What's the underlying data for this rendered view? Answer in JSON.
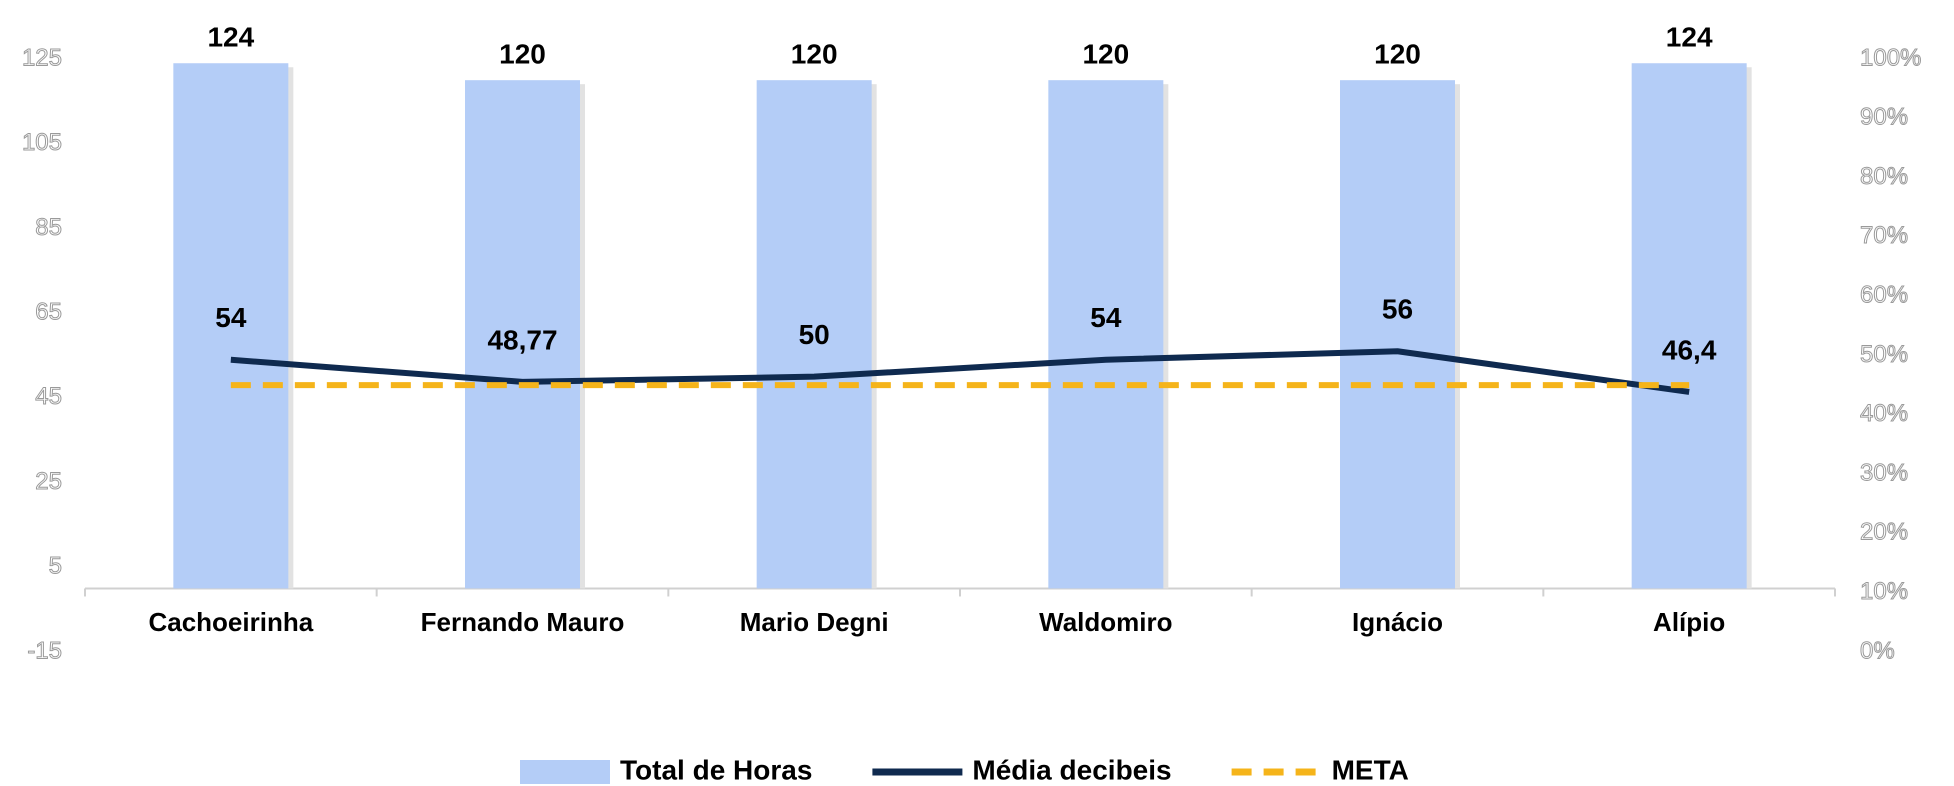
{
  "chart_data": {
    "type": "bar",
    "categories": [
      "Cachoeirinha",
      "Fernando Mauro",
      "Mario Degni",
      "Waldomiro",
      "Ignácio",
      "Alípio"
    ],
    "series": [
      {
        "name": "Total de Horas",
        "type": "bar",
        "color": "#b4cdf7",
        "values": [
          124,
          120,
          120,
          120,
          120,
          124
        ]
      },
      {
        "name": "Média decibeis",
        "type": "line",
        "color": "#0f2a4f",
        "values": [
          54,
          48.77,
          50,
          54,
          56,
          46.4
        ],
        "value_labels": [
          "54",
          "48,77",
          "50",
          "54",
          "56",
          "46,4"
        ]
      },
      {
        "name": "META",
        "type": "line",
        "style": "dashed",
        "color": "#f5b41a",
        "values": [
          48,
          48,
          48,
          48,
          48,
          48
        ]
      }
    ],
    "ylim": [
      -15,
      125
    ],
    "yticks": [
      -15,
      5,
      25,
      45,
      65,
      85,
      105,
      125
    ],
    "y2lim": [
      0,
      100
    ],
    "y2ticks": [
      {
        "value": 0,
        "label": "0%"
      },
      {
        "value": 10,
        "label": "10%"
      },
      {
        "value": 20,
        "label": "20%"
      },
      {
        "value": 30,
        "label": "30%"
      },
      {
        "value": 40,
        "label": "40%"
      },
      {
        "value": 50,
        "label": "50%"
      },
      {
        "value": 60,
        "label": "60%"
      },
      {
        "value": 70,
        "label": "70%"
      },
      {
        "value": 80,
        "label": "80%"
      },
      {
        "value": 90,
        "label": "90%"
      },
      {
        "value": 100,
        "label": "100%"
      }
    ],
    "legend": "bottom"
  }
}
